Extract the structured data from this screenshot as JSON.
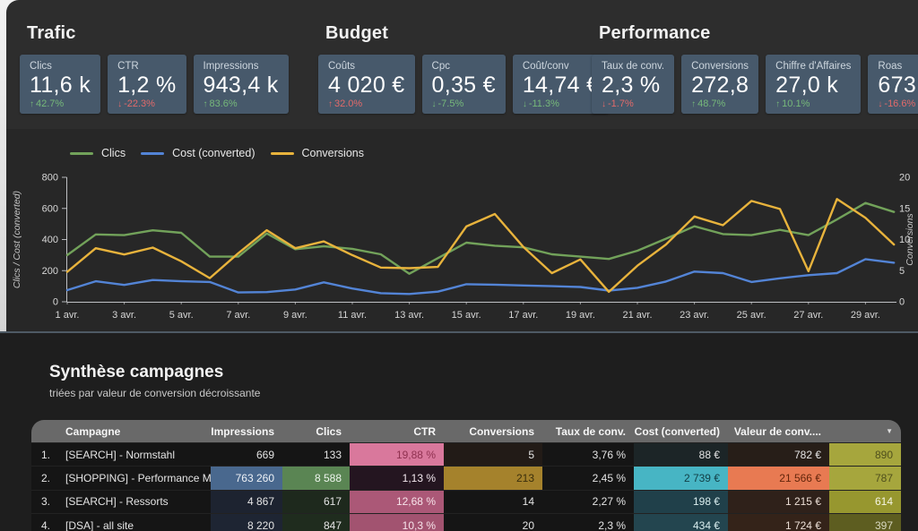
{
  "colors": {
    "card_bg": "#47596b",
    "delta_good": "#76b87a",
    "delta_bad": "#e26a6a",
    "table_header_bg": "#696969",
    "clics_line": "#72a25a",
    "cost_line": "#5384d6",
    "conversions_line": "#e8b33c"
  },
  "icons": {
    "sort_caret": "▼",
    "up_arrow": "↑",
    "down_arrow": "↓"
  },
  "kpi_groups": [
    {
      "title": "Trafic",
      "items": [
        {
          "label": "Clics",
          "value": "11,6 k",
          "delta": "42.7%",
          "dir": "up",
          "tone": "good"
        },
        {
          "label": "CTR",
          "value": "1,2 %",
          "delta": "-22.3%",
          "dir": "down",
          "tone": "bad"
        },
        {
          "label": "Impressions",
          "value": "943,4 k",
          "delta": "83.6%",
          "dir": "up",
          "tone": "good"
        }
      ]
    },
    {
      "title": "Budget",
      "items": [
        {
          "label": "Coûts",
          "value": "4 020 €",
          "delta": "32.0%",
          "dir": "up",
          "tone": "bad"
        },
        {
          "label": "Cpc",
          "value": "0,35 €",
          "delta": "-7.5%",
          "dir": "down",
          "tone": "good"
        },
        {
          "label": "Coût/conv",
          "value": "14,74 €",
          "delta": "-11.3%",
          "dir": "down",
          "tone": "good"
        }
      ]
    },
    {
      "title": "Performance",
      "items": [
        {
          "label": "Taux de conv.",
          "value": "2,3 %",
          "delta": "-1.7%",
          "dir": "down",
          "tone": "bad"
        },
        {
          "label": "Conversions",
          "value": "272,8",
          "delta": "48.7%",
          "dir": "up",
          "tone": "good"
        },
        {
          "label": "Chiffre d'Affaires",
          "value": "27,0 k",
          "delta": "10.1%",
          "dir": "up",
          "tone": "good"
        },
        {
          "label": "Roas",
          "value": "673",
          "delta": "-16.6%",
          "dir": "down",
          "tone": "bad"
        }
      ]
    }
  ],
  "chart": {
    "left_axis": {
      "title": "Clics / Cost (converted)",
      "ticks": [
        800,
        600,
        400,
        200,
        0
      ]
    },
    "right_axis": {
      "title": "Conversions",
      "ticks": [
        20,
        15,
        10,
        5,
        0
      ]
    },
    "x_ticks": [
      "1 avr.",
      "3 avr.",
      "5 avr.",
      "7 avr.",
      "9 avr.",
      "11 avr.",
      "13 avr.",
      "15 avr.",
      "17 avr.",
      "19 avr.",
      "21 avr.",
      "23 avr.",
      "25 avr.",
      "27 avr.",
      "29 avr."
    ]
  },
  "chart_data": {
    "type": "line",
    "x": [
      1,
      2,
      3,
      4,
      5,
      6,
      7,
      8,
      9,
      10,
      11,
      12,
      13,
      14,
      15,
      16,
      17,
      18,
      19,
      20,
      21,
      22,
      23,
      24,
      25,
      26,
      27,
      28,
      29,
      30
    ],
    "x_unit": "avril",
    "left_ylim": [
      0,
      800
    ],
    "right_ylim": [
      0,
      20
    ],
    "grid": false,
    "legend_position": "top-left",
    "series": [
      {
        "name": "Clics",
        "axis": "left",
        "color": "#72a25a",
        "values": [
          300,
          433,
          428,
          459,
          443,
          290,
          290,
          439,
          338,
          357,
          340,
          305,
          180,
          280,
          380,
          360,
          350,
          305,
          290,
          275,
          328,
          405,
          485,
          435,
          428,
          462,
          428,
          529,
          635,
          577
        ]
      },
      {
        "name": "Cost (converted)",
        "axis": "left",
        "color": "#5384d6",
        "values": [
          75,
          132,
          108,
          140,
          132,
          127,
          60,
          62,
          79,
          125,
          85,
          55,
          50,
          65,
          113,
          110,
          105,
          100,
          95,
          72,
          90,
          130,
          194,
          184,
          127,
          151,
          171,
          184,
          274,
          251
        ]
      },
      {
        "name": "Conversions",
        "axis": "right",
        "color": "#e8b33c",
        "values": [
          4.8,
          8.6,
          7.6,
          8.7,
          6.5,
          3.8,
          7.8,
          11.5,
          8.6,
          9.7,
          7.5,
          5.5,
          5.4,
          5.6,
          12.1,
          14.1,
          8.8,
          4.6,
          6.8,
          1.6,
          5.8,
          9.2,
          13.7,
          12.3,
          16.2,
          14.9,
          4.9,
          16.5,
          13.5,
          9.2
        ]
      }
    ]
  },
  "table_section": {
    "title": "Synthèse campagnes",
    "subtitle": "triées par valeur de conversion décroissante",
    "columns": [
      "Campagne",
      "Impressions",
      "Clics",
      "CTR",
      "Conversions",
      "Taux de conv.",
      "Cost (converted)",
      "Valeur de conv...."
    ],
    "rows": [
      {
        "num": "1.",
        "name": "[SEARCH] - Normstahl",
        "cells": [
          [
            "669",
            "",
            ""
          ],
          [
            "133",
            "",
            ""
          ],
          [
            "19,88 %",
            "#d9789c",
            "#8f3150"
          ],
          [
            "5",
            "#221b17",
            ""
          ],
          [
            "3,76 %",
            "",
            ""
          ],
          [
            "88 €",
            "#1c2527",
            ""
          ],
          [
            "782 €",
            "#271e18",
            ""
          ],
          [
            "890",
            "#a6a63d",
            "#50501d"
          ]
        ]
      },
      {
        "num": "2.",
        "name": "[SHOPPING] - Performance Max",
        "cells": [
          [
            "763 260",
            "#49688e",
            "#eef2f7"
          ],
          [
            "8 588",
            "#5a8553",
            "#edf4ec"
          ],
          [
            "1,13 %",
            "#241520",
            "#f3e8ef"
          ],
          [
            "213",
            "#a5822c",
            "#3a2e0c"
          ],
          [
            "2,45 %",
            "",
            ""
          ],
          [
            "2 739 €",
            "#47b5c4",
            "#123f46"
          ],
          [
            "21 566 €",
            "#e87a52",
            "#63260c"
          ],
          [
            "787",
            "#a6a63d",
            "#50501d"
          ]
        ]
      },
      {
        "num": "3.",
        "name": "[SEARCH] - Ressorts",
        "cells": [
          [
            "4 867",
            "#1d2330",
            ""
          ],
          [
            "617",
            "#1e291d",
            ""
          ],
          [
            "12,68 %",
            "#ab5877",
            "#f7e4ea"
          ],
          [
            "14",
            "",
            ""
          ],
          [
            "2,27 %",
            "",
            ""
          ],
          [
            "198 €",
            "#20404a",
            "#d9edee"
          ],
          [
            "1 215 €",
            "#2f211a",
            "#ecdfd6"
          ],
          [
            "614",
            "#97972f",
            "#f4f4e3"
          ]
        ]
      },
      {
        "num": "4.",
        "name": "[DSA] - all site",
        "cells": [
          [
            "8 220",
            "#1e2533",
            ""
          ],
          [
            "847",
            "#1f2c1e",
            ""
          ],
          [
            "10,3 %",
            "#a25370",
            "#f7e4ea"
          ],
          [
            "20",
            "",
            ""
          ],
          [
            "2,3 %",
            "",
            ""
          ],
          [
            "434 €",
            "#23454f",
            "#d9edee"
          ],
          [
            "1 724 €",
            "#342319",
            "#ecdfd6"
          ],
          [
            "397",
            "#5d5d20",
            "#d8d8c0"
          ]
        ]
      }
    ]
  }
}
